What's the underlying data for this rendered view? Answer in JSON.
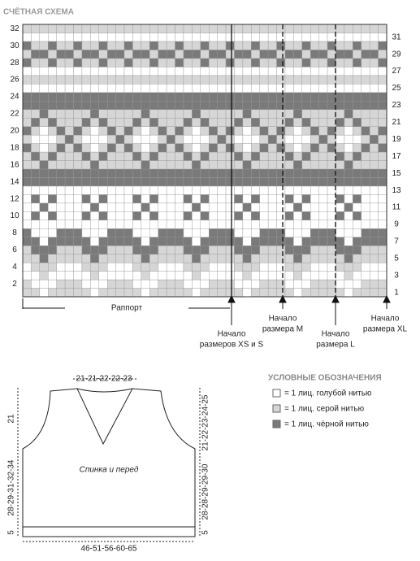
{
  "header": {
    "title": "СЧЁТНАЯ СХЕМА"
  },
  "chart": {
    "left_rows": [
      32,
      30,
      28,
      26,
      24,
      22,
      20,
      18,
      16,
      14,
      12,
      10,
      8,
      6,
      4,
      2
    ],
    "right_rows": [
      31,
      29,
      27,
      25,
      23,
      21,
      19,
      17,
      15,
      13,
      11,
      9,
      7,
      5,
      3,
      1
    ],
    "repeat_label": "Раппорт",
    "markers": [
      {
        "line1": "Начало",
        "line2": "размеров XS и S"
      },
      {
        "line1": "Начало",
        "line2": "размера M"
      },
      {
        "line1": "Начало",
        "line2": "размера L"
      },
      {
        "line1": "Начало",
        "line2": "размера XL"
      }
    ]
  },
  "legend": {
    "title": "УСЛОВНЫЕ ОБОЗНАЧЕНИЯ",
    "items": [
      "= 1 лиц. голубой нитью",
      "= 1 лиц. серой нитью",
      "= 1 лиц. чёрной нитью"
    ]
  },
  "schematic": {
    "label": "Спинка и перед",
    "neck_width": "21-21-22-22-23",
    "left_armhole": "21",
    "left_side": "28-29-31-32-34",
    "left_rib": "5",
    "right_armhole": "21-22-23-24-25",
    "right_side": "28-28-29-29-30",
    "right_rib": "5",
    "bottom_width": "46-51-56-60-65"
  }
}
